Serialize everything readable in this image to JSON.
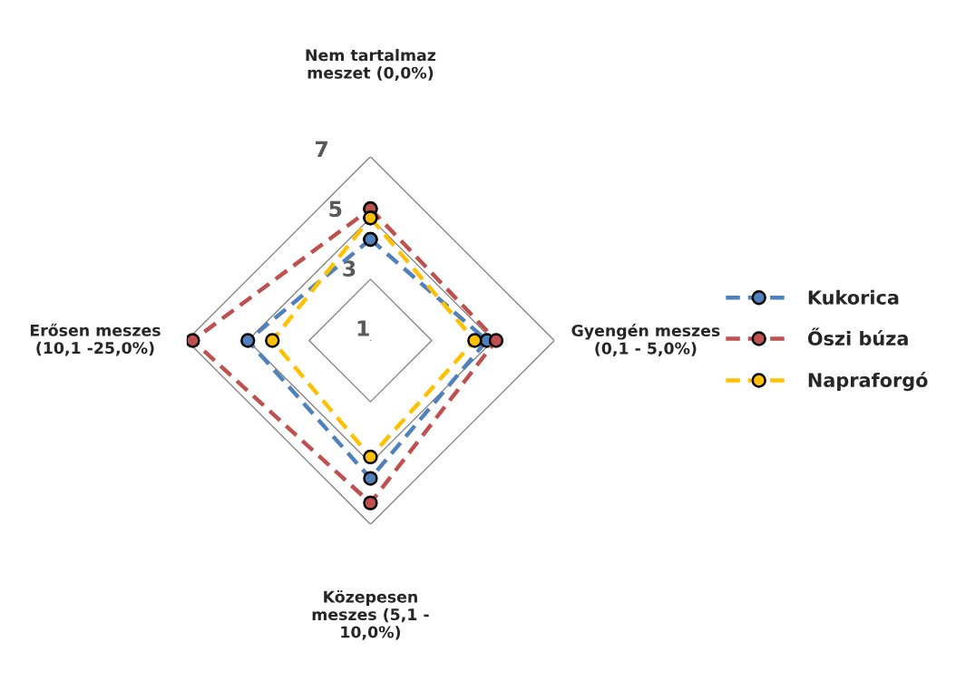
{
  "chart_data": {
    "type": "radar",
    "categories": [
      "Nem tartalmaz meszet (0,0%)",
      "Gyengén meszes (0,1 - 5,0%)",
      "Közepesen meszes (5,1 - 10,0%)",
      "Erősen meszes (10,1 -25,0%)"
    ],
    "series": [
      {
        "name": "Kukorica",
        "color": "#4f81bd",
        "values": [
          4.3,
          4.8,
          5.5,
          5.0
        ]
      },
      {
        "name": "Őszi búza",
        "color": "#c0504d",
        "values": [
          5.3,
          5.1,
          6.3,
          6.8
        ]
      },
      {
        "name": "Napraforgó",
        "color": "#ffc000",
        "values": [
          5.0,
          4.4,
          4.8,
          4.2
        ]
      }
    ],
    "ylim": [
      1,
      7
    ],
    "yticks": [
      1,
      3,
      5,
      7
    ],
    "grid": true,
    "legend": "right",
    "marker": "circle",
    "line_style": "dashed"
  }
}
